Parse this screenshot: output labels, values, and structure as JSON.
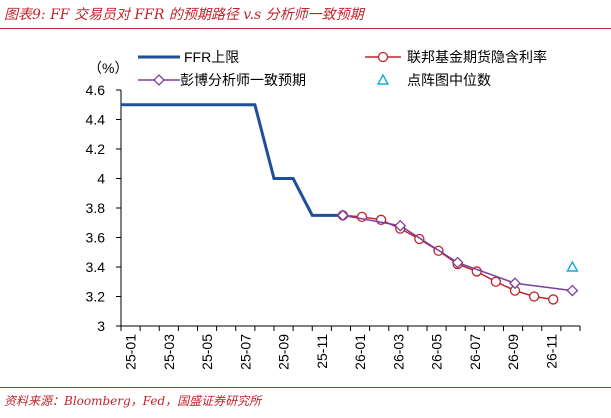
{
  "figure": {
    "title": "图表9: FF 交易员对 FFR 的预期路径 v.s 分析师一致预期",
    "source": "资料来源：Bloomberg，Fed，国盛证券研究所"
  },
  "colors": {
    "accent": "#c0232b",
    "ffr": "#1f4e9a",
    "futures": "#c0232b",
    "analyst": "#7b3fa0",
    "dot": "#17a7d8"
  },
  "chart_data": {
    "type": "line",
    "ylabel": "（%）",
    "ylim": [
      3,
      4.6
    ],
    "yticks": [
      "4.6",
      "4.4",
      "4.2",
      "4",
      "3.8",
      "3.6",
      "3.4",
      "3.2",
      "3"
    ],
    "ytick_values": [
      4.6,
      4.4,
      4.2,
      4.0,
      3.8,
      3.6,
      3.4,
      3.2,
      3.0
    ],
    "xticks": [
      "25-01",
      "25-03",
      "25-05",
      "25-07",
      "25-09",
      "25-11",
      "26-01",
      "26-03",
      "26-05",
      "26-07",
      "26-09",
      "26-11"
    ],
    "xtick_index": [
      0,
      2,
      4,
      6,
      8,
      10,
      12,
      14,
      16,
      18,
      20,
      22
    ],
    "grid": false,
    "legend": "top",
    "series": [
      {
        "name": "FFR上限",
        "style": "line",
        "x": [
          0,
          1,
          2,
          3,
          4,
          5,
          6,
          7,
          8,
          9,
          10,
          11,
          11.6
        ],
        "y": [
          4.5,
          4.5,
          4.5,
          4.5,
          4.5,
          4.5,
          4.5,
          4.5,
          4.0,
          4.0,
          3.75,
          3.75,
          3.75
        ]
      },
      {
        "name": "联邦基金期货隐含利率",
        "style": "line-circle",
        "x": [
          11.6,
          12.6,
          13.6,
          14.6,
          15.6,
          16.6,
          17.6,
          18.6,
          19.6,
          20.6,
          21.6,
          22.6
        ],
        "y": [
          3.75,
          3.74,
          3.72,
          3.66,
          3.59,
          3.51,
          3.42,
          3.37,
          3.3,
          3.24,
          3.2,
          3.18
        ]
      },
      {
        "name": "彭博分析师一致预期",
        "style": "line-diamond",
        "x": [
          11.6,
          14.6,
          17.6,
          20.6,
          23.6
        ],
        "y": [
          3.75,
          3.68,
          3.43,
          3.29,
          3.24
        ]
      },
      {
        "name": "点阵图中位数",
        "style": "triangle",
        "x": [
          23.6
        ],
        "y": [
          3.4
        ]
      }
    ]
  }
}
